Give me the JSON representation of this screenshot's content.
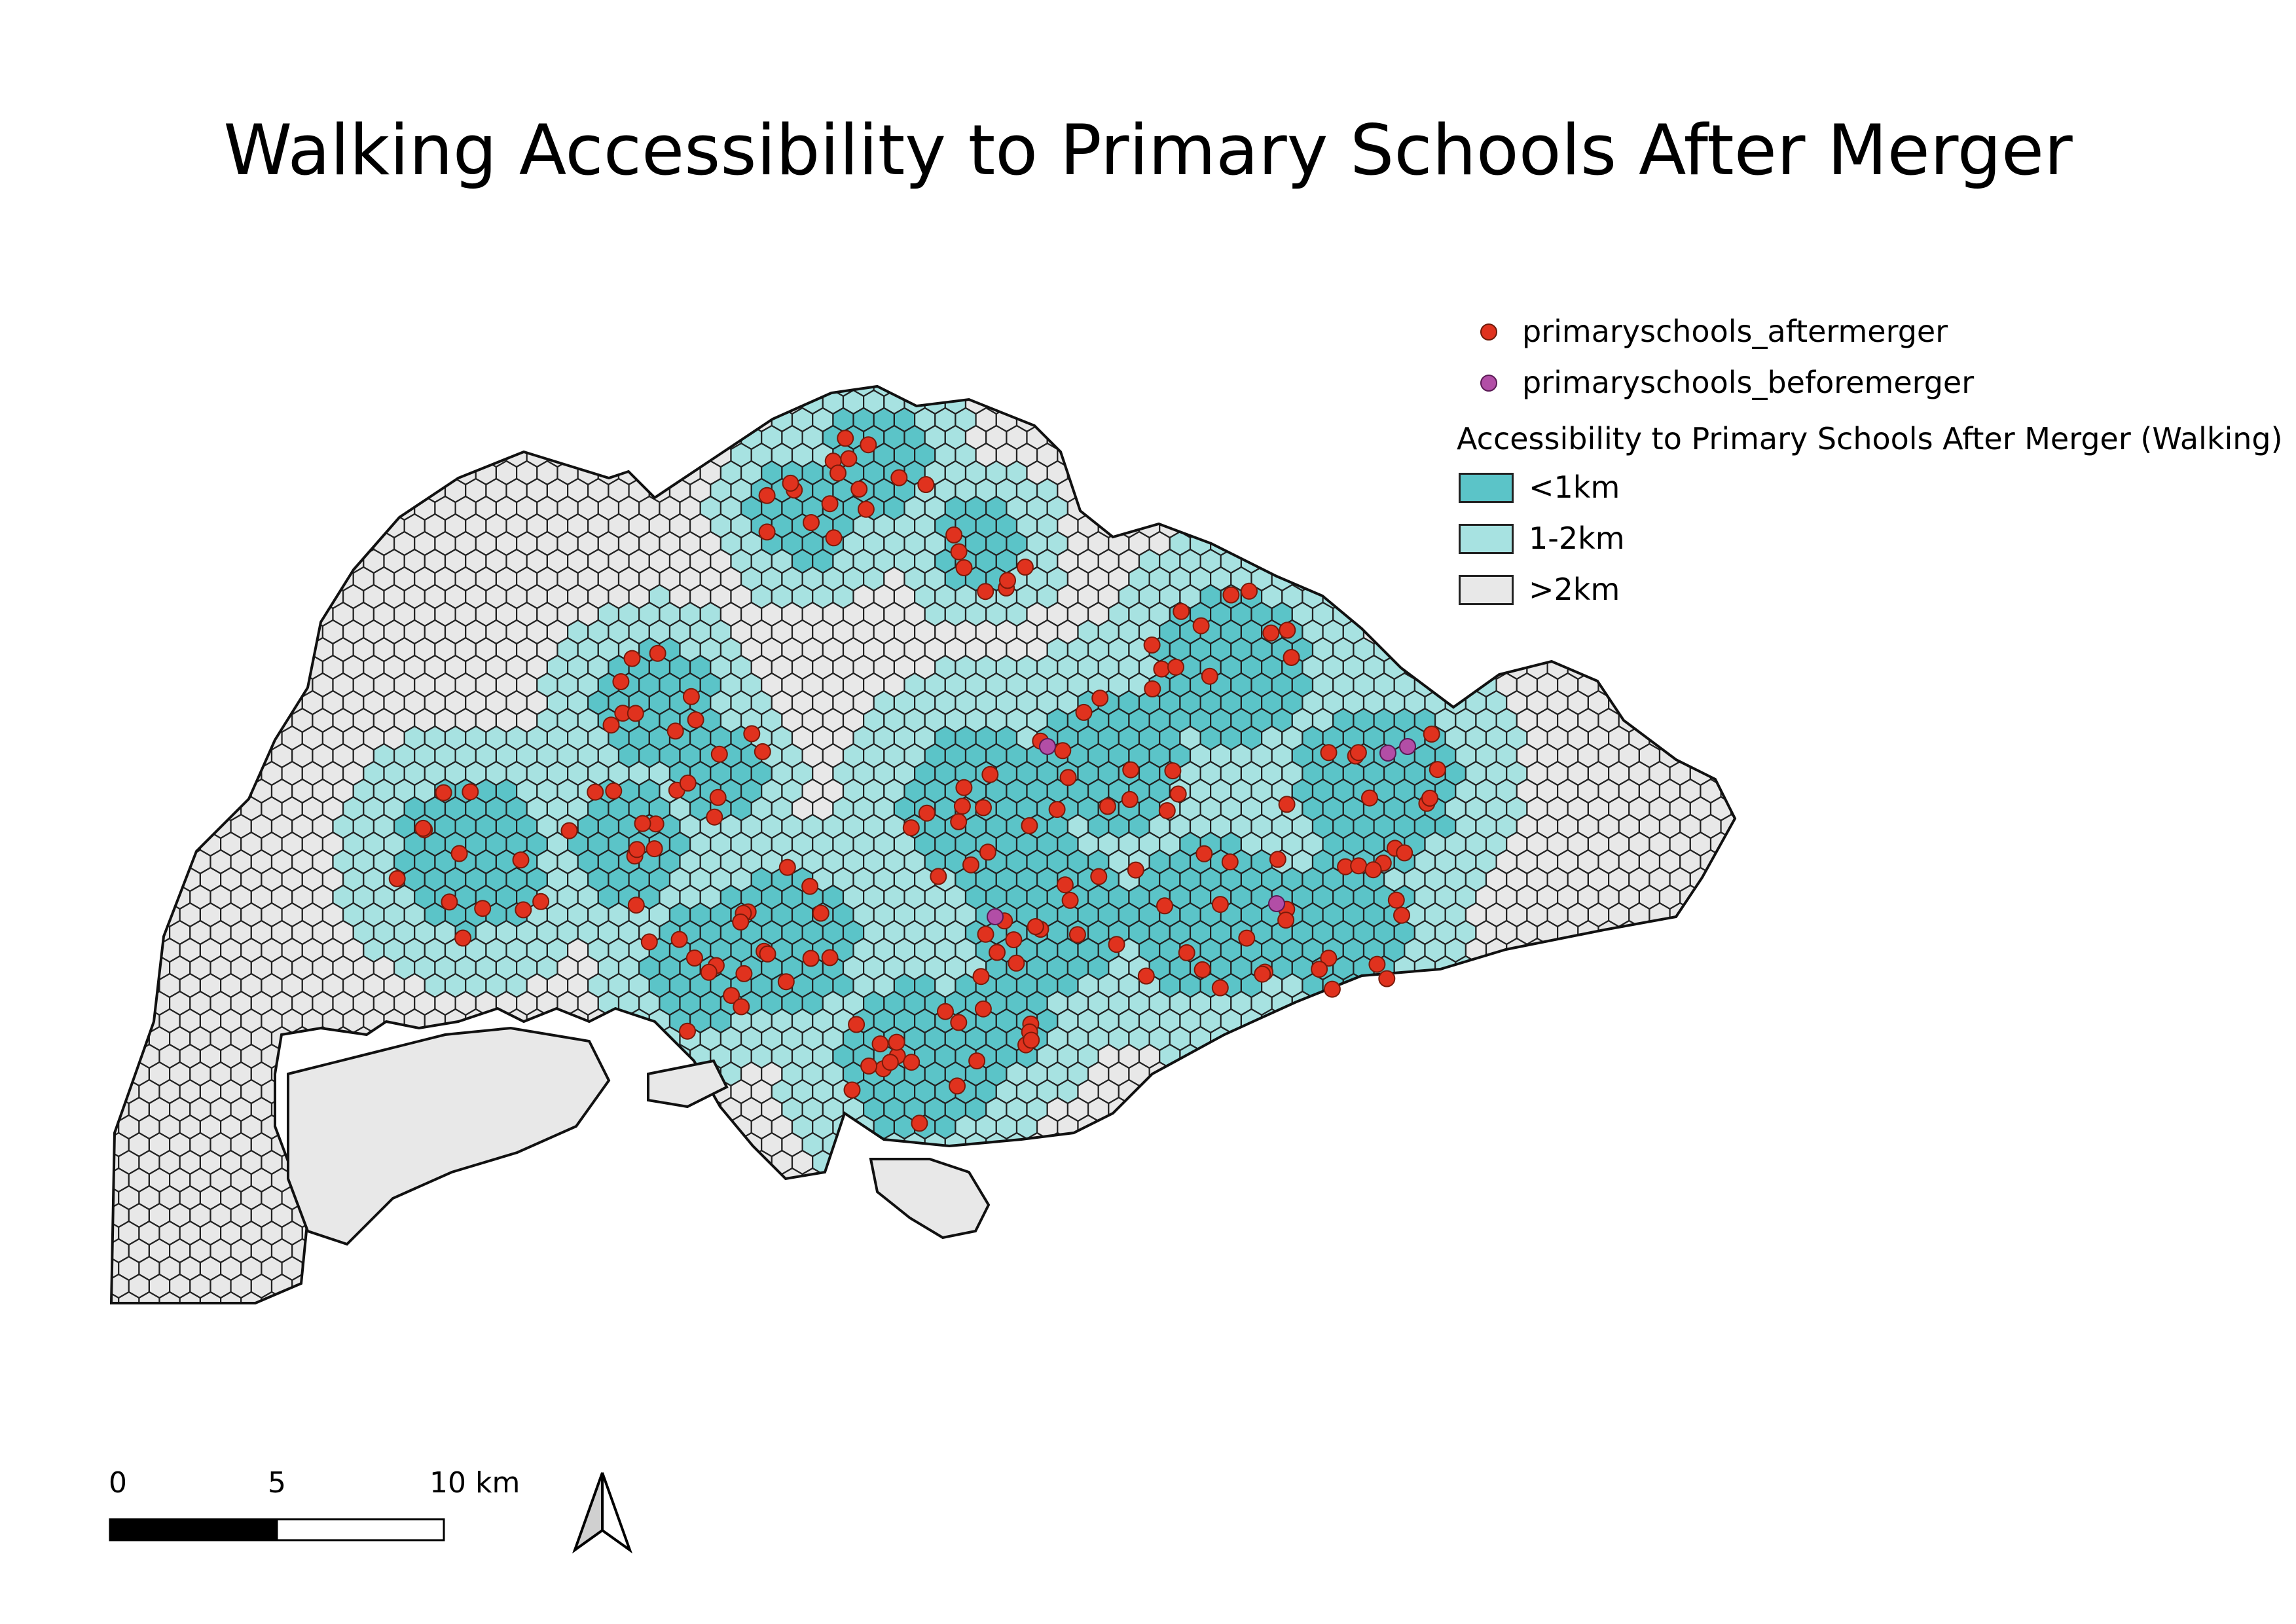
{
  "title": "Walking Accessibility to Primary Schools After Merger",
  "legend": {
    "points": [
      {
        "label": "primaryschools_aftermerger",
        "color": "#e0321e"
      },
      {
        "label": "primaryschools_beforemerger",
        "color": "#b24ea6"
      }
    ],
    "group_title": "Accessibility to Primary Schools After Merger (Walking)",
    "classes": [
      {
        "label": "<1km",
        "color": "#5bc4c8"
      },
      {
        "label": "1-2km",
        "color": "#a7e2e1"
      },
      {
        "label": ">2km",
        "color": "#e8e8e8"
      }
    ]
  },
  "scale_bar": {
    "labels": [
      "0",
      "5",
      "10 km"
    ]
  },
  "north_arrow": {
    "icon": "north-arrow-icon"
  }
}
